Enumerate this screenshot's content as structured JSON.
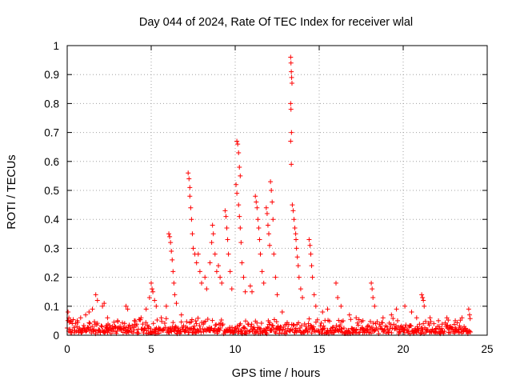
{
  "chart_data": {
    "type": "scatter",
    "title": "Day 044 of 2024, Rate Of TEC Index for receiver wlal",
    "xlabel": "GPS time / hours",
    "ylabel": "ROTI / TECUs",
    "xlim": [
      0,
      25
    ],
    "ylim": [
      0,
      1
    ],
    "xticks": [
      "0",
      "5",
      "10",
      "15",
      "20",
      "25"
    ],
    "yticks": [
      "0",
      "0.1",
      "0.2",
      "0.3",
      "0.4",
      "0.5",
      "0.6",
      "0.7",
      "0.8",
      "0.9",
      "1"
    ],
    "grid": true,
    "marker": "+",
    "colors": {
      "series": "#ff0000"
    },
    "series": [
      {
        "points": [
          [
            0.05,
            0.08
          ],
          [
            0.1,
            0.06
          ],
          [
            0.2,
            0.05
          ],
          [
            0.3,
            0.04
          ],
          [
            0.6,
            0.05
          ],
          [
            0.8,
            0.06
          ],
          [
            1.1,
            0.07
          ],
          [
            1.3,
            0.08
          ],
          [
            1.5,
            0.09
          ],
          [
            1.7,
            0.14
          ],
          [
            1.8,
            0.12
          ],
          [
            2.1,
            0.1
          ],
          [
            2.2,
            0.11
          ],
          [
            2.4,
            0.06
          ],
          [
            3.0,
            0.05
          ],
          [
            3.5,
            0.1
          ],
          [
            3.6,
            0.09
          ],
          [
            4.0,
            0.05
          ],
          [
            4.4,
            0.06
          ],
          [
            4.7,
            0.09
          ],
          [
            4.9,
            0.13
          ],
          [
            5.0,
            0.18
          ],
          [
            5.05,
            0.16
          ],
          [
            5.1,
            0.15
          ],
          [
            5.2,
            0.12
          ],
          [
            5.3,
            0.1
          ],
          [
            5.6,
            0.06
          ],
          [
            5.9,
            0.1
          ],
          [
            6.05,
            0.35
          ],
          [
            6.1,
            0.34
          ],
          [
            6.15,
            0.32
          ],
          [
            6.2,
            0.29
          ],
          [
            6.25,
            0.26
          ],
          [
            6.3,
            0.22
          ],
          [
            6.35,
            0.18
          ],
          [
            6.4,
            0.14
          ],
          [
            6.5,
            0.11
          ],
          [
            6.8,
            0.07
          ],
          [
            7.2,
            0.56
          ],
          [
            7.25,
            0.54
          ],
          [
            7.3,
            0.51
          ],
          [
            7.3,
            0.48
          ],
          [
            7.35,
            0.44
          ],
          [
            7.4,
            0.4
          ],
          [
            7.45,
            0.35
          ],
          [
            7.5,
            0.3
          ],
          [
            7.6,
            0.28
          ],
          [
            7.7,
            0.25
          ],
          [
            7.8,
            0.28
          ],
          [
            7.9,
            0.22
          ],
          [
            8.0,
            0.18
          ],
          [
            8.2,
            0.2
          ],
          [
            8.3,
            0.16
          ],
          [
            8.5,
            0.25
          ],
          [
            8.6,
            0.32
          ],
          [
            8.65,
            0.38
          ],
          [
            8.7,
            0.35
          ],
          [
            8.8,
            0.28
          ],
          [
            8.9,
            0.22
          ],
          [
            9.0,
            0.24
          ],
          [
            9.1,
            0.2
          ],
          [
            9.2,
            0.18
          ],
          [
            9.4,
            0.43
          ],
          [
            9.45,
            0.41
          ],
          [
            9.5,
            0.37
          ],
          [
            9.55,
            0.33
          ],
          [
            9.6,
            0.28
          ],
          [
            9.7,
            0.22
          ],
          [
            9.8,
            0.16
          ],
          [
            10.1,
            0.67
          ],
          [
            10.15,
            0.66
          ],
          [
            10.2,
            0.63
          ],
          [
            10.25,
            0.58
          ],
          [
            10.3,
            0.55
          ],
          [
            10.05,
            0.52
          ],
          [
            10.1,
            0.49
          ],
          [
            10.2,
            0.45
          ],
          [
            10.25,
            0.41
          ],
          [
            10.3,
            0.37
          ],
          [
            10.35,
            0.32
          ],
          [
            10.4,
            0.25
          ],
          [
            10.5,
            0.2
          ],
          [
            10.6,
            0.15
          ],
          [
            10.9,
            0.17
          ],
          [
            11.0,
            0.15
          ],
          [
            11.2,
            0.48
          ],
          [
            11.25,
            0.46
          ],
          [
            11.3,
            0.44
          ],
          [
            11.35,
            0.4
          ],
          [
            11.4,
            0.37
          ],
          [
            11.45,
            0.33
          ],
          [
            11.5,
            0.28
          ],
          [
            11.6,
            0.22
          ],
          [
            11.7,
            0.18
          ],
          [
            11.85,
            0.44
          ],
          [
            11.9,
            0.42
          ],
          [
            11.95,
            0.38
          ],
          [
            12.0,
            0.35
          ],
          [
            12.05,
            0.31
          ],
          [
            12.1,
            0.53
          ],
          [
            12.15,
            0.5
          ],
          [
            12.2,
            0.46
          ],
          [
            12.25,
            0.4
          ],
          [
            12.3,
            0.28
          ],
          [
            12.4,
            0.2
          ],
          [
            12.5,
            0.14
          ],
          [
            12.8,
            0.08
          ],
          [
            13.3,
            0.96
          ],
          [
            13.32,
            0.94
          ],
          [
            13.34,
            0.91
          ],
          [
            13.36,
            0.89
          ],
          [
            13.38,
            0.87
          ],
          [
            13.3,
            0.8
          ],
          [
            13.32,
            0.78
          ],
          [
            13.35,
            0.7
          ],
          [
            13.3,
            0.67
          ],
          [
            13.34,
            0.59
          ],
          [
            13.4,
            0.45
          ],
          [
            13.45,
            0.43
          ],
          [
            13.5,
            0.4
          ],
          [
            13.55,
            0.37
          ],
          [
            13.6,
            0.35
          ],
          [
            13.62,
            0.33
          ],
          [
            13.65,
            0.3
          ],
          [
            13.7,
            0.27
          ],
          [
            13.75,
            0.24
          ],
          [
            13.8,
            0.2
          ],
          [
            13.9,
            0.16
          ],
          [
            14.0,
            0.13
          ],
          [
            14.4,
            0.33
          ],
          [
            14.45,
            0.31
          ],
          [
            14.5,
            0.28
          ],
          [
            14.55,
            0.24
          ],
          [
            14.6,
            0.2
          ],
          [
            14.7,
            0.14
          ],
          [
            14.8,
            0.1
          ],
          [
            15.2,
            0.08
          ],
          [
            15.5,
            0.09
          ],
          [
            16.0,
            0.18
          ],
          [
            16.1,
            0.13
          ],
          [
            16.3,
            0.1
          ],
          [
            16.8,
            0.07
          ],
          [
            17.2,
            0.06
          ],
          [
            17.6,
            0.05
          ],
          [
            18.1,
            0.18
          ],
          [
            18.15,
            0.16
          ],
          [
            18.2,
            0.13
          ],
          [
            18.3,
            0.1
          ],
          [
            18.8,
            0.06
          ],
          [
            19.3,
            0.07
          ],
          [
            19.6,
            0.09
          ],
          [
            20.1,
            0.1
          ],
          [
            20.5,
            0.08
          ],
          [
            20.8,
            0.06
          ],
          [
            21.1,
            0.14
          ],
          [
            21.15,
            0.13
          ],
          [
            21.2,
            0.12
          ],
          [
            21.25,
            0.1
          ],
          [
            21.6,
            0.06
          ],
          [
            22.1,
            0.05
          ],
          [
            22.6,
            0.06
          ],
          [
            23.1,
            0.05
          ],
          [
            23.5,
            0.06
          ],
          [
            23.9,
            0.09
          ],
          [
            23.95,
            0.07
          ]
        ]
      }
    ],
    "baseline": {
      "x_start": 0,
      "x_end": 24,
      "typical_max": 0.05,
      "typical_min": 0.005
    }
  }
}
